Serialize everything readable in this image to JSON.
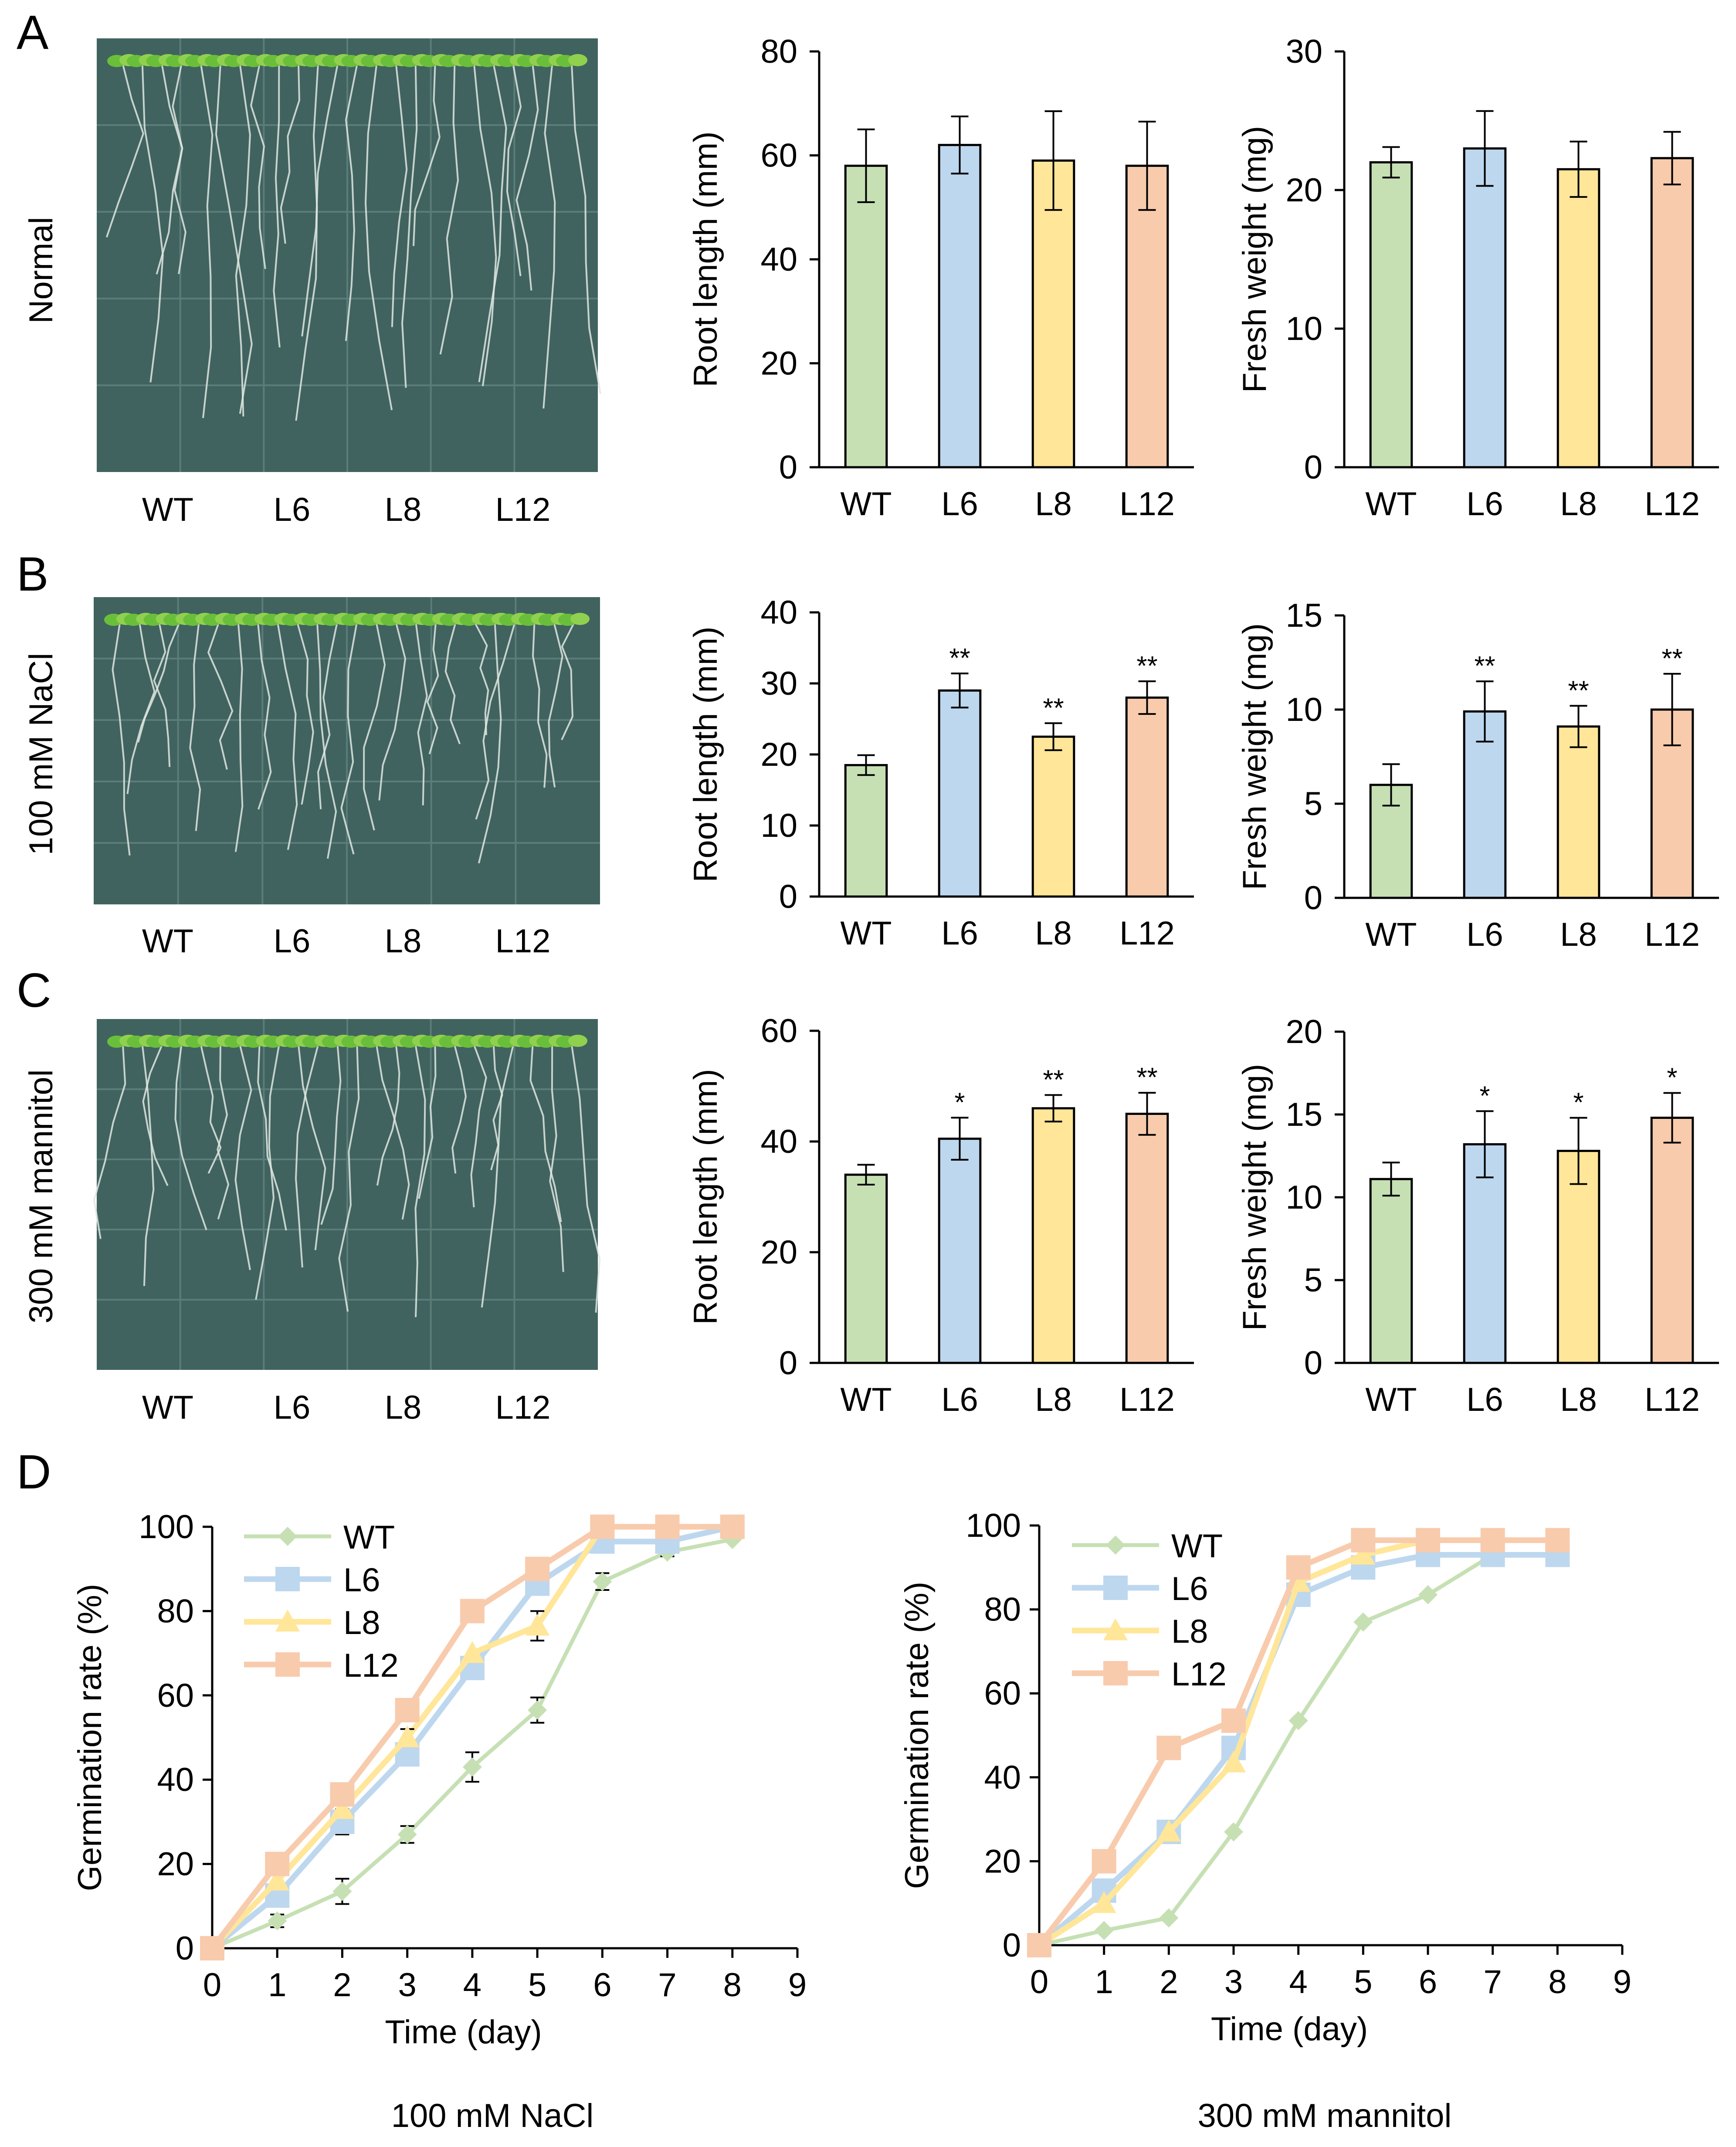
{
  "colors": {
    "WT": "#c6e0b4",
    "L6": "#bdd7ee",
    "L8": "#ffe699",
    "L12": "#f8cbad",
    "axis": "#000000",
    "plate": "#41635f",
    "leaf": "#6abf3a",
    "root": "#dfe6e2"
  },
  "panel_letters": [
    "A",
    "B",
    "C",
    "D"
  ],
  "photo_rows": [
    {
      "label": "Normal",
      "image": "seedling-plate-photo-normal",
      "genotypes": [
        "WT",
        "L6",
        "L8",
        "L12"
      ]
    },
    {
      "label": "100 mM NaCl",
      "image": "seedling-plate-photo-nacl",
      "genotypes": [
        "WT",
        "L6",
        "L8",
        "L12"
      ]
    },
    {
      "label": "300 mM mannitol",
      "image": "seedling-plate-photo-mannitol",
      "genotypes": [
        "WT",
        "L6",
        "L8",
        "L12"
      ]
    }
  ],
  "chart_data": [
    {
      "id": "A-root",
      "panel": "A",
      "type": "bar",
      "ylabel": "Root length (mm)",
      "ylim": [
        0,
        80
      ],
      "yticks": [
        0,
        20,
        40,
        60,
        80
      ],
      "categories": [
        "WT",
        "L6",
        "L8",
        "L12"
      ],
      "values": [
        58,
        62,
        59,
        58
      ],
      "errors": [
        7,
        5.5,
        9.5,
        8.5
      ],
      "significance": [
        "",
        "",
        "",
        ""
      ]
    },
    {
      "id": "A-fw",
      "panel": "A",
      "type": "bar",
      "ylabel": "Fresh weight (mg)",
      "ylim": [
        0,
        30
      ],
      "yticks": [
        0,
        10,
        20,
        30
      ],
      "categories": [
        "WT",
        "L6",
        "L8",
        "L12"
      ],
      "values": [
        22,
        23,
        21.5,
        22.3
      ],
      "errors": [
        1.1,
        2.7,
        2,
        1.9
      ],
      "significance": [
        "",
        "",
        "",
        ""
      ]
    },
    {
      "id": "B-root",
      "panel": "B",
      "type": "bar",
      "ylabel": "Root length (mm)",
      "ylim": [
        0,
        40
      ],
      "yticks": [
        0,
        10,
        20,
        30,
        40
      ],
      "categories": [
        "WT",
        "L6",
        "L8",
        "L12"
      ],
      "values": [
        18.5,
        29,
        22.5,
        28
      ],
      "errors": [
        1.4,
        2.4,
        1.9,
        2.3
      ],
      "significance": [
        "",
        "**",
        "**",
        "**"
      ]
    },
    {
      "id": "B-fw",
      "panel": "B",
      "type": "bar",
      "ylabel": "Fresh weight (mg)",
      "ylim": [
        0,
        15
      ],
      "yticks": [
        0,
        5,
        10,
        15
      ],
      "categories": [
        "WT",
        "L6",
        "L8",
        "L12"
      ],
      "values": [
        6,
        9.9,
        9.1,
        10
      ],
      "errors": [
        1.1,
        1.6,
        1.1,
        1.9
      ],
      "significance": [
        "",
        "**",
        "**",
        "**"
      ]
    },
    {
      "id": "C-root",
      "panel": "C",
      "type": "bar",
      "ylabel": "Root length (mm)",
      "ylim": [
        0,
        60
      ],
      "yticks": [
        0,
        20,
        40,
        60
      ],
      "categories": [
        "WT",
        "L6",
        "L8",
        "L12"
      ],
      "values": [
        34,
        40.5,
        46,
        45
      ],
      "errors": [
        1.8,
        3.8,
        2.4,
        3.8
      ],
      "significance": [
        "",
        "*",
        "**",
        "**"
      ]
    },
    {
      "id": "C-fw",
      "panel": "C",
      "type": "bar",
      "ylabel": "Fresh weight (mg)",
      "ylim": [
        0,
        20
      ],
      "yticks": [
        0,
        5,
        10,
        15,
        20
      ],
      "categories": [
        "WT",
        "L6",
        "L8",
        "L12"
      ],
      "values": [
        11.1,
        13.2,
        12.8,
        14.8
      ],
      "errors": [
        1,
        2,
        2,
        1.5
      ],
      "significance": [
        "",
        "*",
        "*",
        "*"
      ]
    },
    {
      "id": "D-nacl",
      "panel": "D",
      "type": "line",
      "title": "100 mM NaCl",
      "xlabel": "Time (day)",
      "ylabel": "Germination rate (%)",
      "xlim": [
        0,
        9
      ],
      "ylim": [
        0,
        100
      ],
      "xticks": [
        0,
        1,
        2,
        3,
        4,
        5,
        6,
        7,
        8,
        9
      ],
      "yticks": [
        0,
        20,
        40,
        60,
        80,
        100
      ],
      "x": [
        0,
        1,
        2,
        3,
        4,
        5,
        6,
        7,
        8
      ],
      "legend": "top-left",
      "series": [
        {
          "name": "WT",
          "marker": "diamond",
          "values": [
            0,
            6.5,
            13.5,
            27,
            43,
            56.5,
            87,
            94,
            97
          ],
          "errors": [
            0,
            1.5,
            3,
            2,
            3.5,
            3,
            2,
            1,
            0
          ]
        },
        {
          "name": "L6",
          "marker": "square",
          "values": [
            0,
            12.5,
            30,
            46,
            66.5,
            86.5,
            96.5,
            96.5,
            100
          ],
          "errors": [
            0,
            0,
            3,
            0,
            0,
            0,
            0,
            0,
            0
          ]
        },
        {
          "name": "L8",
          "marker": "triangle",
          "values": [
            0,
            16,
            33,
            50,
            70,
            76.5,
            100,
            100,
            100
          ],
          "errors": [
            0,
            0,
            0,
            2,
            0,
            3.5,
            0,
            0,
            0
          ]
        },
        {
          "name": "L12",
          "marker": "square",
          "values": [
            0,
            20,
            36.5,
            56.5,
            80,
            90,
            100,
            100,
            100
          ],
          "errors": [
            0,
            0,
            0,
            0,
            0,
            0,
            0,
            0,
            0
          ]
        }
      ]
    },
    {
      "id": "D-mannitol",
      "panel": "D",
      "type": "line",
      "title": "300 mM mannitol",
      "xlabel": "Time (day)",
      "ylabel": "Germination rate (%)",
      "xlim": [
        0,
        9
      ],
      "ylim": [
        0,
        100
      ],
      "xticks": [
        0,
        1,
        2,
        3,
        4,
        5,
        6,
        7,
        8,
        9
      ],
      "yticks": [
        0,
        20,
        40,
        60,
        80,
        100
      ],
      "x": [
        0,
        1,
        2,
        3,
        4,
        5,
        6,
        7,
        8
      ],
      "legend": "top-left",
      "series": [
        {
          "name": "WT",
          "marker": "diamond",
          "values": [
            0,
            3.5,
            6.5,
            27,
            53.5,
            77,
            83.5,
            93,
            93
          ],
          "errors": [
            0,
            0,
            0,
            0,
            0,
            0,
            0,
            0,
            0
          ]
        },
        {
          "name": "L6",
          "marker": "square",
          "values": [
            0,
            13,
            27,
            47,
            83.5,
            90,
            93,
            93,
            93
          ],
          "errors": [
            0,
            0,
            0,
            0,
            0,
            0,
            0,
            0,
            0
          ]
        },
        {
          "name": "L8",
          "marker": "triangle",
          "values": [
            0,
            10,
            27,
            43.5,
            86.5,
            93,
            96.5,
            96.5,
            96.5
          ],
          "errors": [
            0,
            0,
            0,
            0,
            0,
            0,
            0,
            0,
            0
          ]
        },
        {
          "name": "L12",
          "marker": "square",
          "values": [
            0,
            20,
            47,
            53.5,
            90,
            96.5,
            96.5,
            96.5,
            96.5
          ],
          "errors": [
            0,
            0,
            0,
            0,
            0,
            0,
            0,
            0,
            0
          ]
        }
      ]
    }
  ]
}
